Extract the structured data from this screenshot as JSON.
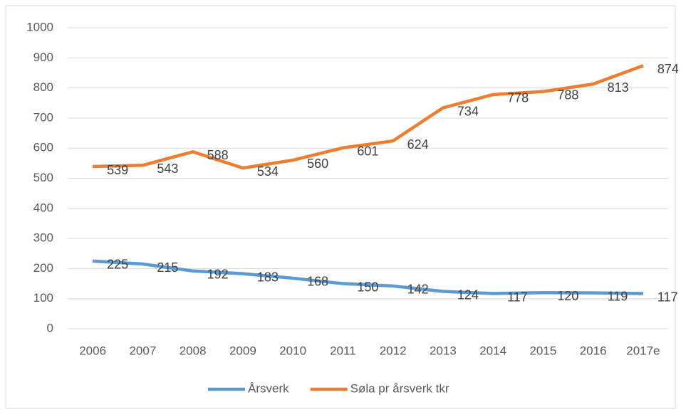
{
  "chart_data": {
    "type": "line",
    "categories": [
      "2006",
      "2007",
      "2008",
      "2009",
      "2010",
      "2011",
      "2012",
      "2013",
      "2014",
      "2015",
      "2016",
      "2017e"
    ],
    "series": [
      {
        "name": "Årsverk",
        "color": "#5b9bd5",
        "values": [
          225,
          215,
          192,
          183,
          168,
          150,
          142,
          124,
          117,
          120,
          119,
          117
        ]
      },
      {
        "name": "Søla pr årsverk tkr",
        "color": "#ed7d31",
        "values": [
          539,
          543,
          588,
          534,
          560,
          601,
          624,
          734,
          778,
          788,
          813,
          874
        ]
      }
    ],
    "ylim": [
      0,
      1000
    ],
    "yticks": [
      0,
      100,
      200,
      300,
      400,
      500,
      600,
      700,
      800,
      900,
      1000
    ],
    "grid": true,
    "data_labels": true,
    "legend": "bottom"
  }
}
